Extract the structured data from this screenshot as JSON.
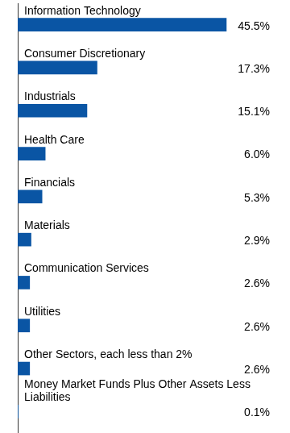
{
  "chart_data": {
    "type": "bar",
    "orientation": "horizontal",
    "categories": [
      "Information Technology",
      "Consumer Discretionary",
      "Industrials",
      "Health Care",
      "Financials",
      "Materials",
      "Communication Services",
      "Utilities",
      "Other Sectors, each less than 2%",
      "Money Market Funds Plus Other Assets Less Liabilities"
    ],
    "values": [
      45.5,
      17.3,
      15.1,
      6.0,
      5.3,
      2.9,
      2.6,
      2.6,
      2.6,
      0.1
    ],
    "value_labels": [
      "45.5%",
      "17.3%",
      "15.1%",
      "6.0%",
      "5.3%",
      "2.9%",
      "2.6%",
      "2.6%",
      "2.6%",
      "0.1%"
    ],
    "color": "#0a55a4",
    "xlim": [
      0,
      55
    ],
    "data_labels": true,
    "tick_labels": false,
    "grid": false
  }
}
